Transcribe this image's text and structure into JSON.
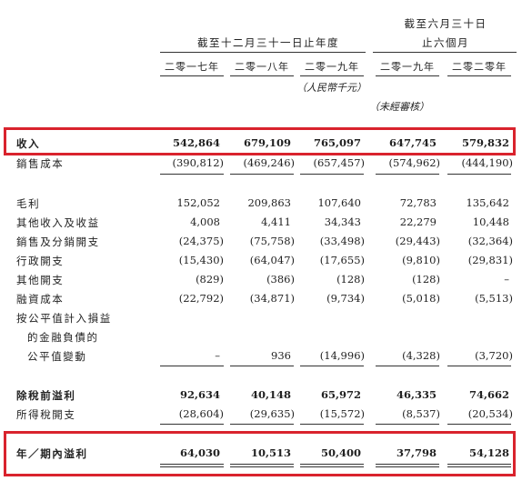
{
  "header": {
    "group_year": "截至十二月三十一日止年度",
    "group_half_line1": "截至六月三十日",
    "group_half_line2": "止六個月",
    "columns": [
      "二零一七年",
      "二零一八年",
      "二零一九年",
      "二零一九年",
      "二零二零年"
    ],
    "unit_note": "（人民幣千元）",
    "unaudited_note": "（未經審核）"
  },
  "rows": [
    {
      "label": "收入",
      "values": [
        "542,864",
        "679,109",
        "765,097",
        "647,745",
        "579,832"
      ]
    },
    {
      "label": "銷售成本",
      "values": [
        "(390,812)",
        "(469,246)",
        "(657,457)",
        "(574,962)",
        "(444,190)"
      ]
    },
    {
      "label": "毛利",
      "values": [
        "152,052",
        "209,863",
        "107,640",
        "72,783",
        "135,642"
      ]
    },
    {
      "label": "其他收入及收益",
      "values": [
        "4,008",
        "4,411",
        "34,343",
        "22,279",
        "10,448"
      ]
    },
    {
      "label": "銷售及分銷開支",
      "values": [
        "(24,375)",
        "(75,758)",
        "(33,498)",
        "(29,443)",
        "(32,364)"
      ]
    },
    {
      "label": "行政開支",
      "values": [
        "(15,430)",
        "(64,047)",
        "(17,655)",
        "(9,810)",
        "(29,831)"
      ]
    },
    {
      "label": "其他開支",
      "values": [
        "(829)",
        "(386)",
        "(128)",
        "(128)",
        "–"
      ]
    },
    {
      "label": "融資成本",
      "values": [
        "(22,792)",
        "(34,871)",
        "(9,734)",
        "(5,018)",
        "(5,513)"
      ]
    },
    {
      "label": "按公平值計入損益",
      "values": []
    },
    {
      "label": "的金融負債的",
      "values": []
    },
    {
      "label": "公平值變動",
      "values": [
        "–",
        "936",
        "(14,996)",
        "(4,328)",
        "(3,720)"
      ]
    },
    {
      "label": "除稅前溢利",
      "values": [
        "92,634",
        "40,148",
        "65,972",
        "46,335",
        "74,662"
      ]
    },
    {
      "label": "所得稅開支",
      "values": [
        "(28,604)",
        "(29,635)",
        "(15,572)",
        "(8,537)",
        "(20,534)"
      ]
    },
    {
      "label": "年／期內溢利",
      "values": [
        "64,030",
        "10,513",
        "50,400",
        "37,798",
        "54,128"
      ]
    }
  ]
}
